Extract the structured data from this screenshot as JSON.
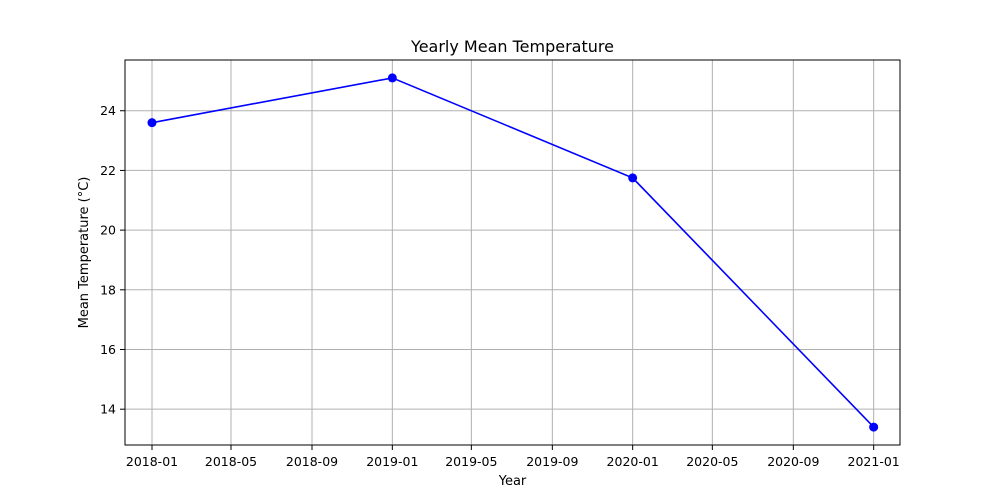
{
  "chart_data": {
    "type": "line",
    "title": "Yearly Mean Temperature",
    "xlabel": "Year",
    "ylabel": "Mean Temperature (°C)",
    "x": [
      "2018-01-01",
      "2019-01-01",
      "2020-01-01",
      "2021-01-01"
    ],
    "series": [
      {
        "values": [
          23.6,
          25.1,
          21.75,
          13.4
        ],
        "color": "#0000ff",
        "marker": "circle"
      }
    ],
    "xlim": [
      "2017-11-21",
      "2021-02-10"
    ],
    "ylim": [
      12.8,
      25.7
    ],
    "xticks": [
      {
        "value": "2018-01-01",
        "label": "2018-01"
      },
      {
        "value": "2018-05-01",
        "label": "2018-05"
      },
      {
        "value": "2018-09-01",
        "label": "2018-09"
      },
      {
        "value": "2019-01-01",
        "label": "2019-01"
      },
      {
        "value": "2019-05-01",
        "label": "2019-05"
      },
      {
        "value": "2019-09-01",
        "label": "2019-09"
      },
      {
        "value": "2020-01-01",
        "label": "2020-01"
      },
      {
        "value": "2020-05-01",
        "label": "2020-05"
      },
      {
        "value": "2020-09-01",
        "label": "2020-09"
      },
      {
        "value": "2021-01-01",
        "label": "2021-01"
      }
    ],
    "yticks": [
      14,
      16,
      18,
      20,
      22,
      24
    ],
    "grid": true,
    "legend": false
  }
}
